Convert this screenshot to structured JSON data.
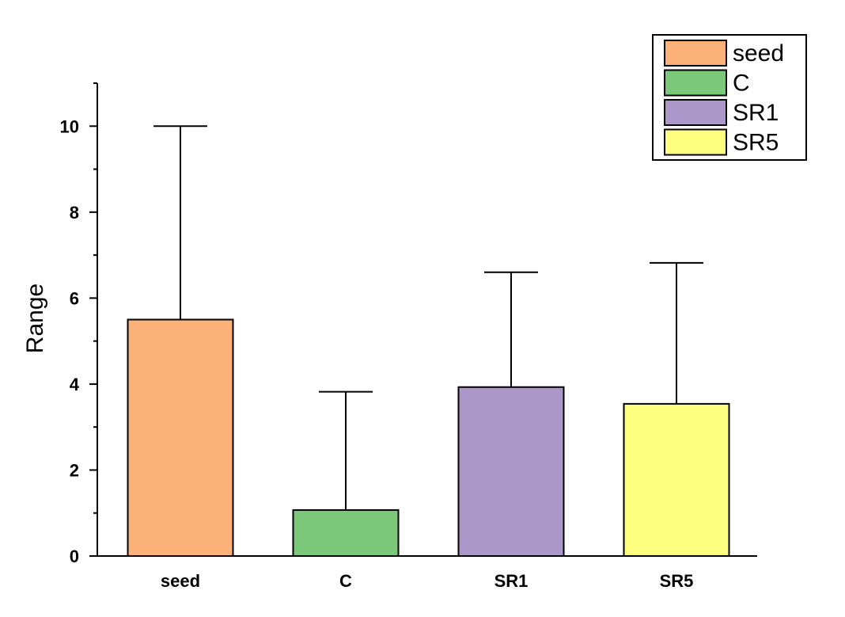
{
  "chart_data": {
    "type": "bar",
    "categories": [
      "seed",
      "C",
      "SR1",
      "SR5"
    ],
    "values": [
      5.5,
      1.07,
      3.93,
      3.54
    ],
    "error_upper": [
      10.0,
      3.82,
      6.6,
      6.82
    ],
    "colors": [
      "#FBB178",
      "#7BC87B",
      "#AC97C9",
      "#FFFF7F"
    ],
    "ylabel": "Range",
    "xlabel": "",
    "ylim": [
      0,
      11
    ],
    "yticks": [
      0,
      2,
      4,
      6,
      8,
      10
    ],
    "ytick_labels": [
      "0",
      "2",
      "4",
      "6",
      "8",
      "10"
    ],
    "grid": false,
    "legend": {
      "position": "top-right",
      "entries": [
        "seed",
        "C",
        "SR1",
        "SR5"
      ]
    }
  }
}
